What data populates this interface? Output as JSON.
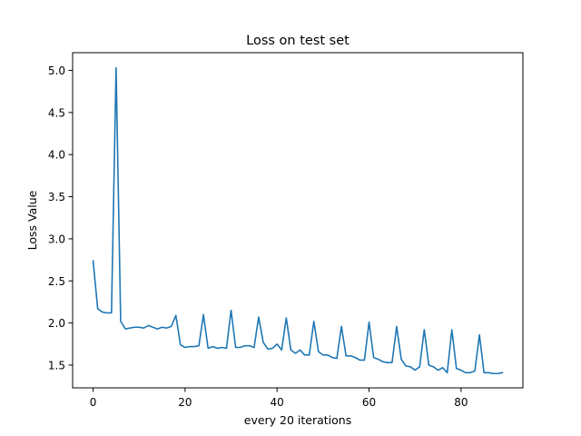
{
  "chart_data": {
    "type": "line",
    "title": "Loss on test set",
    "xlabel": "every 20 iterations",
    "ylabel": "Loss Value",
    "xlim": [
      -4.45,
      93.45
    ],
    "ylim": [
      1.23,
      5.21
    ],
    "xticks": [
      0,
      20,
      40,
      60,
      80
    ],
    "yticks": [
      1.5,
      2.0,
      2.5,
      3.0,
      3.5,
      4.0,
      4.5,
      5.0
    ],
    "xtick_labels": [
      "0",
      "20",
      "40",
      "60",
      "80"
    ],
    "ytick_labels": [
      "1.5",
      "2.0",
      "2.5",
      "3.0",
      "3.5",
      "4.0",
      "4.5",
      "5.0"
    ],
    "grid": false,
    "color": "#1f77b4",
    "series": [
      {
        "x": [
          0,
          1,
          2,
          3,
          4,
          5,
          6,
          7,
          8,
          9,
          10,
          11,
          12,
          13,
          14,
          15,
          16,
          17,
          18,
          19,
          20,
          21,
          22,
          23,
          24,
          25,
          26,
          27,
          28,
          29,
          30,
          31,
          32,
          33,
          34,
          35,
          36,
          37,
          38,
          39,
          40,
          41,
          42,
          43,
          44,
          45,
          46,
          47,
          48,
          49,
          50,
          51,
          52,
          53,
          54,
          55,
          56,
          57,
          58,
          59,
          60,
          61,
          62,
          63,
          64,
          65,
          66,
          67,
          68,
          69,
          70,
          71,
          72,
          73,
          74,
          75,
          76,
          77,
          78,
          79,
          80,
          81,
          82,
          83,
          84,
          85,
          86,
          87,
          88,
          89
        ],
        "y": [
          2.74,
          2.17,
          2.13,
          2.12,
          2.12,
          5.03,
          2.02,
          1.93,
          1.94,
          1.95,
          1.95,
          1.94,
          1.97,
          1.95,
          1.93,
          1.95,
          1.94,
          1.96,
          2.09,
          1.74,
          1.71,
          1.72,
          1.72,
          1.73,
          2.1,
          1.7,
          1.72,
          1.7,
          1.71,
          1.7,
          2.15,
          1.71,
          1.71,
          1.73,
          1.73,
          1.71,
          2.07,
          1.77,
          1.69,
          1.7,
          1.75,
          1.68,
          2.06,
          1.68,
          1.64,
          1.68,
          1.62,
          1.62,
          2.02,
          1.66,
          1.62,
          1.62,
          1.59,
          1.58,
          1.96,
          1.61,
          1.61,
          1.59,
          1.56,
          1.56,
          2.01,
          1.59,
          1.57,
          1.54,
          1.53,
          1.53,
          1.96,
          1.57,
          1.49,
          1.48,
          1.44,
          1.48,
          1.92,
          1.5,
          1.48,
          1.44,
          1.47,
          1.41,
          1.92,
          1.46,
          1.44,
          1.41,
          1.41,
          1.43,
          1.86,
          1.41,
          1.41,
          1.4,
          1.4,
          1.41
        ]
      }
    ]
  }
}
